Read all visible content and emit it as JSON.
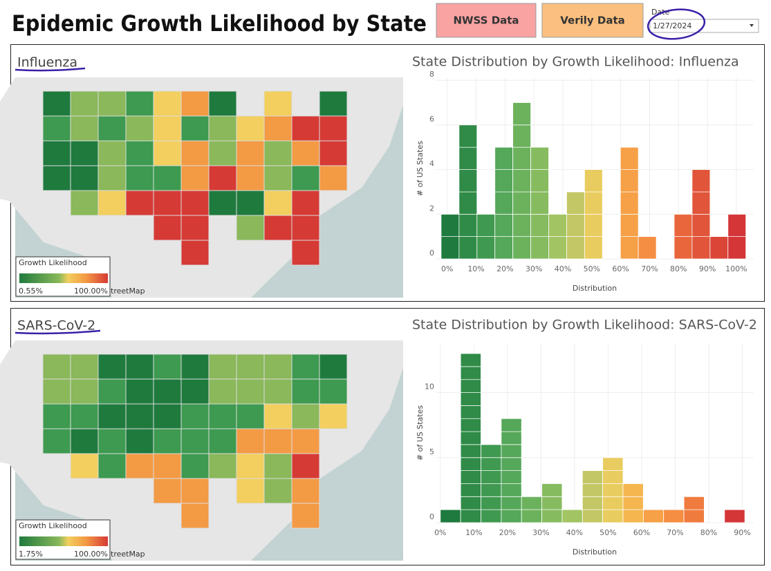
{
  "header": {
    "title": "Epidemic Growth Likelihood by State",
    "buttons": [
      "NWSS Data",
      "Verily Data"
    ],
    "date_label": "Date",
    "date_value": "1/27/2024"
  },
  "panels": [
    {
      "name": "Influenza",
      "legend": {
        "title": "Growth Likelihood",
        "min": "0.55%",
        "max": "100.00%"
      },
      "attribution": "treetMap"
    },
    {
      "name": "SARS-CoV-2",
      "legend": {
        "title": "Growth Likelihood",
        "min": "1.75%",
        "max": "100.00%"
      },
      "attribution": "treetMap"
    }
  ],
  "chart_data": [
    {
      "type": "histogram",
      "title": "State Distribution by Growth Likelihood: Influenza",
      "xlabel": "Distribution",
      "ylabel": "# of US States",
      "bins": [
        -2.1,
        4.1,
        10.3,
        16.5,
        22.7,
        28.9,
        35.1,
        41.3,
        47.5,
        53.7,
        59.9,
        66.1,
        72.3,
        78.5,
        84.7,
        90.9,
        97.1,
        103.3
      ],
      "values": [
        2,
        6,
        2,
        5,
        7,
        5,
        2,
        3,
        4,
        0,
        5,
        1,
        0,
        2,
        4,
        1,
        2
      ],
      "colors": [
        "#1e7a3e",
        "#2f8b47",
        "#3f9950",
        "#55a759",
        "#6cb25d",
        "#87bb60",
        "#a3c463",
        "#c3c765",
        "#e9cc5f",
        "#f5b650",
        "#f6a047",
        "#f58e42",
        "#f07b3f",
        "#e9663d",
        "#e1553a",
        "#da4538",
        "#d43638"
      ],
      "xlim": [
        -4,
        106
      ],
      "xticks": [
        {
          "value": 0,
          "label": "0%"
        },
        {
          "value": 10,
          "label": "10%"
        },
        {
          "value": 20,
          "label": "20%"
        },
        {
          "value": 30,
          "label": "30%"
        },
        {
          "value": 40,
          "label": "40%"
        },
        {
          "value": 50,
          "label": "50%"
        },
        {
          "value": 60,
          "label": "60%"
        },
        {
          "value": 70,
          "label": "70%"
        },
        {
          "value": 80,
          "label": "80%"
        },
        {
          "value": 90,
          "label": "90%"
        },
        {
          "value": 100,
          "label": "100%"
        }
      ],
      "ylim": [
        0,
        8.1
      ],
      "yticks": [
        0,
        2,
        4,
        6,
        8
      ],
      "grid": true
    },
    {
      "type": "histogram",
      "title": "State Distribution by Growth Likelihood: SARS-CoV-2",
      "xlabel": "Distribution",
      "ylabel": "# of US States",
      "bins": [
        0,
        6.05,
        12.1,
        18.15,
        24.2,
        30.25,
        36.3,
        42.35,
        48.4,
        54.45,
        60.5,
        66.55,
        72.6,
        78.65,
        84.7,
        90.75
      ],
      "values": [
        1,
        13,
        6,
        8,
        2,
        3,
        1,
        4,
        5,
        3,
        1,
        1,
        2,
        0,
        1
      ],
      "colors": [
        "#1e7a3e",
        "#2f8b47",
        "#3f9950",
        "#55a759",
        "#6cb25d",
        "#87bb60",
        "#a3c463",
        "#c3c765",
        "#e9cc5f",
        "#f5b650",
        "#f6a047",
        "#f58e42",
        "#f07b3f",
        "#e9663d",
        "#d43638"
      ],
      "xlim": [
        -1.4,
        93.4
      ],
      "xticks": [
        {
          "value": 0,
          "label": "0%"
        },
        {
          "value": 10,
          "label": "10%"
        },
        {
          "value": 20,
          "label": "20%"
        },
        {
          "value": 30,
          "label": "30%"
        },
        {
          "value": 40,
          "label": "40%"
        },
        {
          "value": 50,
          "label": "50%"
        },
        {
          "value": 60,
          "label": "60%"
        },
        {
          "value": 70,
          "label": "70%"
        },
        {
          "value": 80,
          "label": "80%"
        },
        {
          "value": 90,
          "label": "90%"
        }
      ],
      "ylim": [
        0,
        13.8
      ],
      "yticks": [
        0,
        5,
        10
      ],
      "grid": true
    }
  ]
}
